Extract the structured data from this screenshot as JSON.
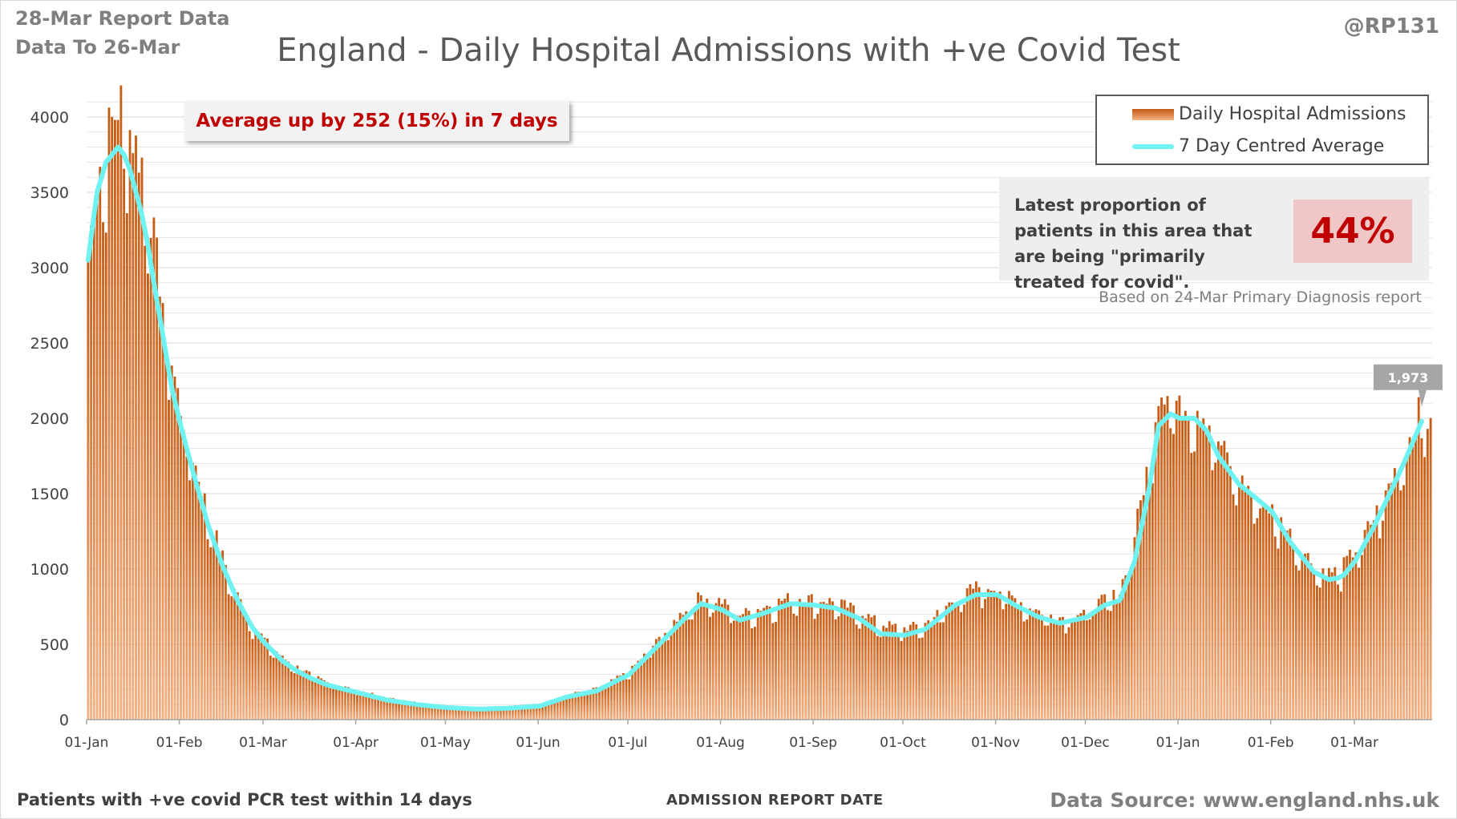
{
  "header": {
    "report_date": "28-Mar Report Data",
    "data_to": "Data To 26-Mar",
    "title": "England - Daily Hospital Admissions with +ve Covid Test",
    "handle": "@RP131"
  },
  "callout": {
    "average_change": "Average up by 252 (15%) in 7 days"
  },
  "legend": {
    "bars_label": "Daily Hospital Admissions",
    "line_label": "7 Day Centred Average"
  },
  "proportion": {
    "text": "Latest proportion of patients in this area that are being \"primarily treated for covid\".",
    "value": "44%",
    "based_on": "Based on 24-Mar Primary Diagnosis report"
  },
  "footer": {
    "left": "Patients with +ve covid PCR test within 14 days",
    "center": "ADMISSION REPORT DATE",
    "right": "Data Source: www.england.nhs.uk"
  },
  "colors": {
    "bar_dark": "#c55a11",
    "bar_light": "#f4b183",
    "average_line": "#6ff2f2",
    "grid": "#d9d9d9",
    "latest_label_bg": "#a6a6a6"
  },
  "chart_data": {
    "type": "bar",
    "ylim": [
      0,
      4000
    ],
    "yticks": [
      "0",
      "500",
      "1000",
      "1500",
      "2000",
      "2500",
      "3000",
      "3500",
      "4000"
    ],
    "xtick_labels": [
      "01-Jan",
      "01-Feb",
      "01-Mar",
      "01-Apr",
      "01-May",
      "01-Jun",
      "01-Jul",
      "01-Aug",
      "01-Sep",
      "01-Oct",
      "01-Nov",
      "01-Dec",
      "01-Jan",
      "01-Feb",
      "01-Mar"
    ],
    "xtick_days": [
      0,
      31,
      59,
      90,
      120,
      151,
      181,
      212,
      243,
      273,
      304,
      334,
      365,
      396,
      424
    ],
    "last_day": 449,
    "latest_label": "1,973",
    "series": [
      {
        "name": "Daily Hospital Admissions",
        "kind": "bars",
        "values_sampled_every_day": true,
        "anchor_days": [
          0,
          3,
          6,
          8,
          10,
          12,
          14,
          16,
          18,
          20,
          22,
          25,
          28,
          31,
          35,
          40,
          45,
          50,
          55,
          59,
          65,
          70,
          75,
          80,
          90,
          100,
          110,
          120,
          130,
          140,
          151,
          160,
          170,
          181,
          190,
          200,
          205,
          212,
          218,
          225,
          235,
          243,
          250,
          258,
          265,
          273,
          280,
          290,
          297,
          304,
          310,
          318,
          325,
          334,
          340,
          345,
          350,
          355,
          358,
          362,
          365,
          370,
          374,
          378,
          385,
          390,
          396,
          402,
          410,
          415,
          418,
          420,
          424,
          430,
          436,
          440,
          443,
          446,
          449
        ],
        "anchor_values": [
          3000,
          3500,
          3750,
          3850,
          3950,
          4000,
          3800,
          3700,
          3600,
          3400,
          3100,
          2700,
          2300,
          2000,
          1700,
          1350,
          1050,
          800,
          620,
          520,
          400,
          340,
          290,
          240,
          190,
          140,
          110,
          90,
          80,
          85,
          100,
          160,
          200,
          310,
          500,
          720,
          800,
          760,
          680,
          720,
          790,
          780,
          760,
          700,
          620,
          590,
          620,
          780,
          860,
          850,
          780,
          700,
          660,
          700,
          780,
          820,
          1200,
          1700,
          2100,
          2150,
          2000,
          2050,
          1950,
          1800,
          1550,
          1450,
          1350,
          1200,
          1000,
          950,
          970,
          1000,
          1100,
          1300,
          1550,
          1750,
          1850,
          2050,
          1860
        ]
      },
      {
        "name": "7 Day Centred Average",
        "kind": "line",
        "anchor_days": [
          0,
          3,
          6,
          8,
          10,
          12,
          14,
          16,
          18,
          20,
          22,
          25,
          28,
          31,
          35,
          40,
          45,
          50,
          55,
          59,
          65,
          70,
          75,
          80,
          90,
          100,
          110,
          120,
          130,
          140,
          151,
          160,
          170,
          181,
          190,
          200,
          205,
          212,
          218,
          225,
          235,
          243,
          250,
          258,
          265,
          273,
          280,
          290,
          297,
          304,
          310,
          318,
          325,
          334,
          340,
          345,
          350,
          355,
          358,
          362,
          365,
          370,
          374,
          378,
          385,
          390,
          396,
          402,
          410,
          415,
          418,
          420,
          424,
          430,
          436,
          440,
          443,
          446
        ],
        "anchor_values": [
          3050,
          3500,
          3700,
          3750,
          3800,
          3750,
          3650,
          3500,
          3350,
          3150,
          2900,
          2550,
          2200,
          1950,
          1650,
          1300,
          1020,
          790,
          610,
          510,
          390,
          320,
          270,
          230,
          180,
          130,
          100,
          80,
          70,
          75,
          90,
          150,
          190,
          300,
          480,
          680,
          770,
          730,
          660,
          700,
          770,
          760,
          740,
          670,
          570,
          560,
          600,
          760,
          830,
          830,
          760,
          680,
          640,
          680,
          760,
          790,
          1050,
          1550,
          1950,
          2030,
          2000,
          2000,
          1920,
          1750,
          1560,
          1480,
          1380,
          1180,
          980,
          930,
          940,
          960,
          1060,
          1280,
          1530,
          1700,
          1840,
          1980
        ]
      }
    ]
  }
}
